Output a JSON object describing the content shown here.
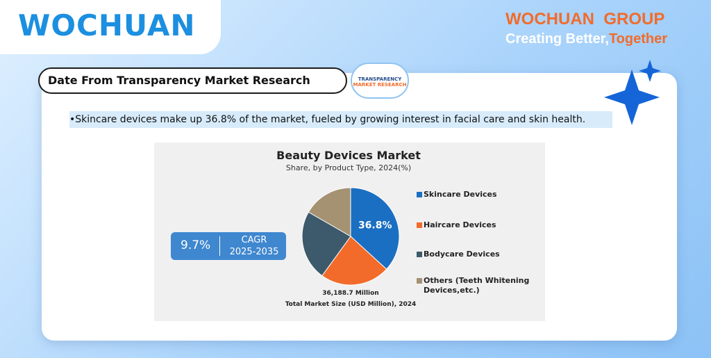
{
  "brand": {
    "logo": "WOCHUAN",
    "group": "WOCHUAN  GROUP",
    "slogan": "Creating Better,",
    "slogan_highlight": "Together"
  },
  "header": {
    "title": "Date From Transparency Market Research",
    "source_logo_line1": "TRANSPARENCY",
    "source_logo_line2": "MARKET RESEARCH"
  },
  "bullet": "•Skincare devices make up 36.8% of the market, fueled by growing interest in facial care and skin health.",
  "cagr": {
    "value": "9.7%",
    "label": "CAGR",
    "period": "2025-2035"
  },
  "footer": {
    "size": "36,188.7 Million",
    "caption": "Total Market Size (USD Million), 2024"
  },
  "chart_data": {
    "type": "pie",
    "title": "Beauty Devices Market",
    "subtitle": "Share, by Product Type, 2024(%)",
    "categories": [
      "Skincare Devices",
      "Haircare Devices",
      "Bodycare Devices",
      "Others (Teeth Whitening Devices,etc.)"
    ],
    "values": [
      36.8,
      23.2,
      23.3,
      16.7
    ],
    "value_labels": [
      "36.8%",
      null,
      null,
      null
    ],
    "colors": [
      "#1b6fc2",
      "#f26b2a",
      "#3c5a6b",
      "#a59272"
    ],
    "legend": "right"
  }
}
